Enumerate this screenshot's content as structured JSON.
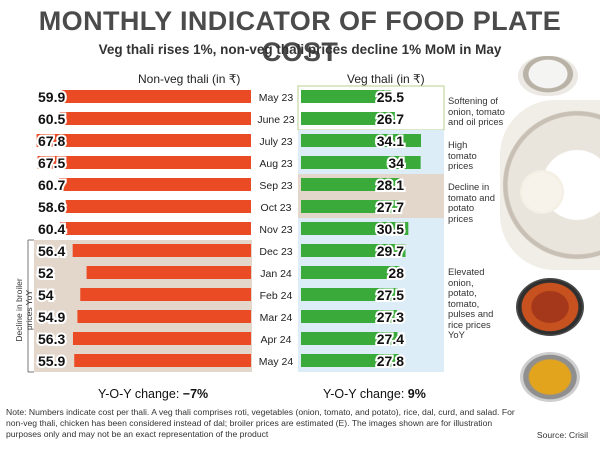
{
  "title": "MONTHLY INDICATOR OF FOOD PLATE COST",
  "subtitle": "Veg thali rises 1%, non-veg thali prices decline 1% MoM in May",
  "left_header": "Non-veg thali (in ₹)",
  "right_header": "Veg thali (in ₹)",
  "yoy": {
    "left_label": "Y-O-Y change:",
    "left_value": "−7%",
    "right_label": "Y-O-Y change:",
    "right_value": "9%"
  },
  "side_annotation": "Decline in broiler prices YoY",
  "annotations": [
    "Softening of onion, tomato and oil prices",
    "High tomato prices",
    "Decline in tomato and potato prices",
    "Elevated onion, potato, tomato, pulses and rice prices YoY"
  ],
  "note": "Note: Numbers indicate cost per thali. A veg thali comprises roti, vegetables (onion, tomato, and potato), rice, dal, curd, and salad. For non-veg thali, chicken has been considered instead of dal; broiler prices are estimated (E). The images shown are for illustration purposes only and may not be an exact representation of the product",
  "source": "Source: Crisil",
  "colors": {
    "nonveg": "#ea4b24",
    "veg": "#3aab3a",
    "band_tan": "#e3d6ca",
    "band_blue": "#dcedf8",
    "band_outline": "#b9cf90"
  },
  "chart_data": {
    "type": "bar",
    "title": "MONTHLY INDICATOR OF FOOD PLATE COST",
    "categories": [
      "May 23",
      "June 23",
      "July 23",
      "Aug 23",
      "Sep 23",
      "Oct 23",
      "Nov 23",
      "Dec 23",
      "Jan 24",
      "Feb 24",
      "Mar 24",
      "Apr 24",
      "May 24"
    ],
    "series": [
      {
        "name": "Non-veg thali (in ₹)",
        "values": [
          59.9,
          60.5,
          67.8,
          67.5,
          60.7,
          58.6,
          60.4,
          56.4,
          52,
          54,
          54.9,
          56.3,
          55.9
        ]
      },
      {
        "name": "Veg thali (in ₹)",
        "values": [
          25.5,
          26.7,
          34.1,
          34,
          28.1,
          27.7,
          30.5,
          29.7,
          28,
          27.5,
          27.3,
          27.4,
          27.8
        ]
      }
    ],
    "value_labels": {
      "nonveg": [
        "59.9",
        "60.5",
        "67.8",
        "67.5",
        "60.7",
        "58.6",
        "60.4",
        "56.4",
        "52",
        "54",
        "54.9",
        "56.3",
        "55.9"
      ],
      "veg": [
        "25.5",
        "26.7",
        "34.1",
        "34",
        "28.1",
        "27.7",
        "30.5",
        "29.7",
        "28",
        "27.5",
        "27.3",
        "27.4",
        "27.8"
      ]
    },
    "xlabel": "",
    "ylabel": ""
  }
}
